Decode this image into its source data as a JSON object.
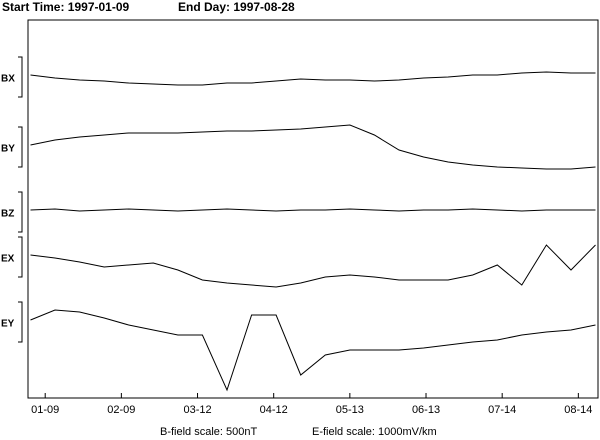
{
  "chart_data": {
    "type": "line",
    "title": "Start Time: 1997-01-09",
    "subtitle": "End Day: 1997-08-28",
    "annotations": [
      "B-field scale: 500nT",
      "E-field scale: 1000mV/km"
    ],
    "x": [
      -6,
      4,
      14,
      24,
      34,
      44,
      54,
      64,
      74,
      84,
      94,
      104,
      114,
      124,
      134,
      144,
      154,
      164,
      174,
      184,
      194,
      204,
      214,
      224
    ],
    "xlim": [
      -7,
      225
    ],
    "xticks": [
      {
        "value": 0,
        "label": "01-09"
      },
      {
        "value": 31,
        "label": "02-09"
      },
      {
        "value": 62,
        "label": "03-12"
      },
      {
        "value": 93,
        "label": "04-12"
      },
      {
        "value": 124,
        "label": "05-13"
      },
      {
        "value": 155,
        "label": "06-13"
      },
      {
        "value": 186,
        "label": "07-14"
      },
      {
        "value": 217,
        "label": "08-14"
      }
    ],
    "series": [
      {
        "name": "BX",
        "color": "#000000",
        "values": [
          0,
          -3,
          -5,
          -6,
          -8,
          -9,
          -10,
          -10,
          -8,
          -8,
          -6,
          -4,
          -5,
          -5,
          -6,
          -5,
          -3,
          -2,
          0,
          0,
          2,
          3,
          2,
          2
        ]
      },
      {
        "name": "BY",
        "color": "#000000",
        "values": [
          0,
          5,
          8,
          10,
          12,
          12,
          12,
          13,
          14,
          14,
          15,
          16,
          18,
          20,
          10,
          -5,
          -12,
          -17,
          -20,
          -22,
          -23,
          -24,
          -24,
          -22
        ]
      },
      {
        "name": "BZ",
        "color": "#000000",
        "values": [
          0,
          1,
          -1,
          0,
          1,
          0,
          -1,
          0,
          1,
          0,
          -1,
          0,
          0,
          1,
          0,
          -1,
          0,
          0,
          1,
          0,
          -1,
          0,
          0,
          0
        ]
      },
      {
        "name": "EX",
        "color": "#000000",
        "values": [
          0,
          -3,
          -7,
          -12,
          -10,
          -8,
          -15,
          -25,
          -28,
          -30,
          -32,
          -28,
          -22,
          -20,
          -22,
          -25,
          -25,
          -25,
          -20,
          -10,
          -30,
          10,
          -15,
          10
        ]
      },
      {
        "name": "EY",
        "color": "#000000",
        "values": [
          0,
          10,
          8,
          2,
          -5,
          -10,
          -15,
          -15,
          -70,
          5,
          5,
          -55,
          -35,
          -30,
          -30,
          -30,
          -28,
          -25,
          -22,
          -20,
          -15,
          -12,
          -10,
          -5
        ]
      }
    ]
  }
}
